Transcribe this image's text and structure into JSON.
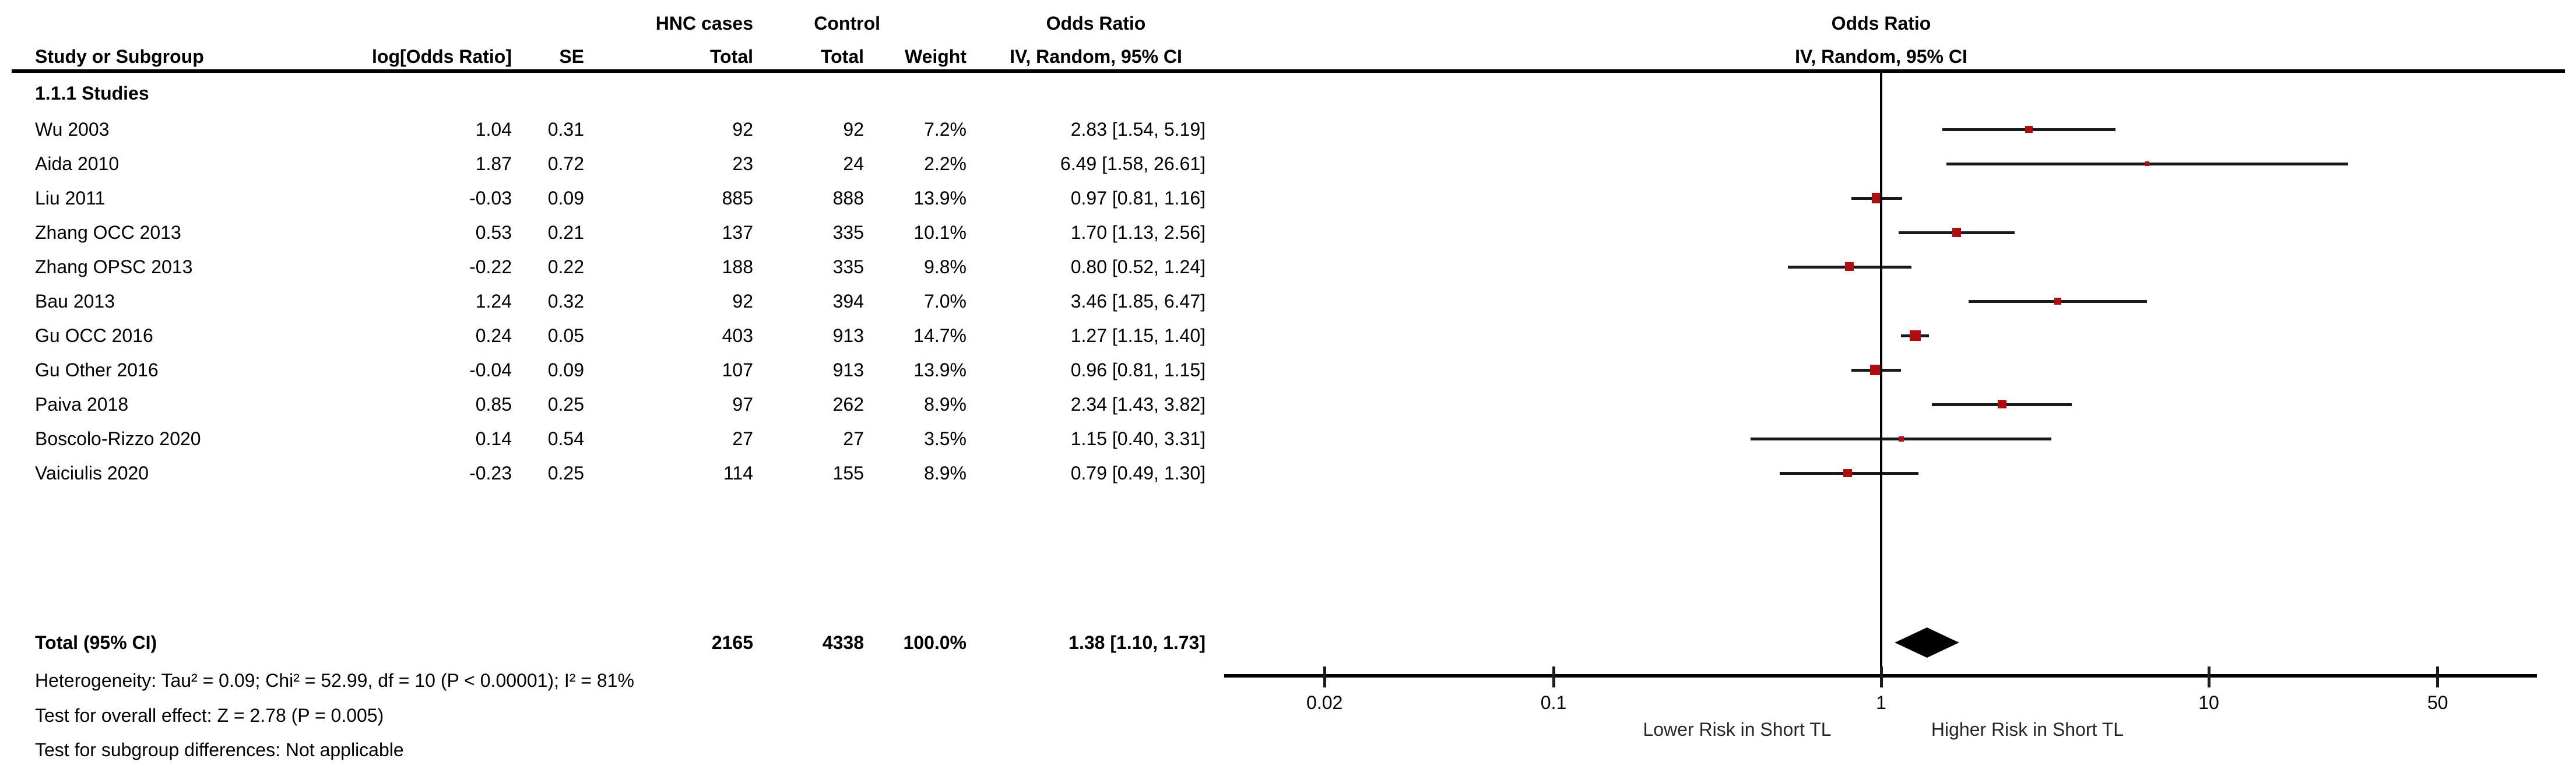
{
  "colors": {
    "background": "#ffffff",
    "text": "#000000",
    "line": "#1a1a1a",
    "marker_red": "#b00e0e",
    "diamond": "#000000",
    "direction_label": "#262626"
  },
  "header": {
    "left": {
      "study_col": "Study or Subgroup",
      "log_or": "log[Odds Ratio]",
      "se": "SE",
      "group1": "HNC cases",
      "group2": "Control",
      "total1": "Total",
      "total2": "Total",
      "weight": "Weight",
      "or_title": "Odds Ratio",
      "or_subtitle": "IV, Random, 95% CI"
    },
    "right": {
      "or_title": "Odds Ratio",
      "or_subtitle": "IV, Random, 95% CI"
    }
  },
  "subgroup_label": "1.1.1 Studies",
  "total_row": {
    "label": "Total (95% CI)",
    "hnc_total": "2165",
    "control_total": "4338",
    "weight": "100.0%",
    "or_ci_text": "1.38 [1.10, 1.73]"
  },
  "footer": {
    "heterogeneity": "Heterogeneity: Tau² = 0.09; Chi² = 52.99, df = 10 (P < 0.00001); I² = 81%",
    "overall_effect": "Test for overall effect: Z = 2.78 (P = 0.005)",
    "subgroup_diff": "Test for subgroup differences: Not applicable"
  },
  "axis": {
    "left_direction_label": "Lower Risk in Short TL",
    "right_direction_label": "Higher Risk in Short TL"
  },
  "chart_data": {
    "type": "scatter",
    "subtype": "forest-plot",
    "title": "Odds Ratio",
    "effect_measure": "IV, Random, 95% CI",
    "x_scale": "log10",
    "x_ticks": [
      0.02,
      0.1,
      1,
      10,
      50
    ],
    "x_tick_labels": [
      "0.02",
      "0.1",
      "1",
      "10",
      "50"
    ],
    "xlim": [
      0.01,
      100
    ],
    "studies": [
      {
        "name": "Wu 2003",
        "log_or": "1.04",
        "se": "0.31",
        "hnc_total": "92",
        "control_total": "92",
        "weight_text": "7.2%",
        "weight_pct": 7.2,
        "or": 2.83,
        "ci_low": 1.54,
        "ci_high": 5.19,
        "or_ci_text": "2.83 [1.54, 5.19]"
      },
      {
        "name": "Aida 2010",
        "log_or": "1.87",
        "se": "0.72",
        "hnc_total": "23",
        "control_total": "24",
        "weight_text": "2.2%",
        "weight_pct": 2.2,
        "or": 6.49,
        "ci_low": 1.58,
        "ci_high": 26.61,
        "or_ci_text": "6.49 [1.58, 26.61]"
      },
      {
        "name": "Liu 2011",
        "log_or": "-0.03",
        "se": "0.09",
        "hnc_total": "885",
        "control_total": "888",
        "weight_text": "13.9%",
        "weight_pct": 13.9,
        "or": 0.97,
        "ci_low": 0.81,
        "ci_high": 1.16,
        "or_ci_text": "0.97 [0.81, 1.16]"
      },
      {
        "name": "Zhang OCC 2013",
        "log_or": "0.53",
        "se": "0.21",
        "hnc_total": "137",
        "control_total": "335",
        "weight_text": "10.1%",
        "weight_pct": 10.1,
        "or": 1.7,
        "ci_low": 1.13,
        "ci_high": 2.56,
        "or_ci_text": "1.70 [1.13, 2.56]"
      },
      {
        "name": "Zhang OPSC 2013",
        "log_or": "-0.22",
        "se": "0.22",
        "hnc_total": "188",
        "control_total": "335",
        "weight_text": "9.8%",
        "weight_pct": 9.8,
        "or": 0.8,
        "ci_low": 0.52,
        "ci_high": 1.24,
        "or_ci_text": "0.80 [0.52, 1.24]"
      },
      {
        "name": "Bau 2013",
        "log_or": "1.24",
        "se": "0.32",
        "hnc_total": "92",
        "control_total": "394",
        "weight_text": "7.0%",
        "weight_pct": 7.0,
        "or": 3.46,
        "ci_low": 1.85,
        "ci_high": 6.47,
        "or_ci_text": "3.46 [1.85, 6.47]"
      },
      {
        "name": "Gu OCC 2016",
        "log_or": "0.24",
        "se": "0.05",
        "hnc_total": "403",
        "control_total": "913",
        "weight_text": "14.7%",
        "weight_pct": 14.7,
        "or": 1.27,
        "ci_low": 1.15,
        "ci_high": 1.4,
        "or_ci_text": "1.27 [1.15, 1.40]"
      },
      {
        "name": "Gu Other 2016",
        "log_or": "-0.04",
        "se": "0.09",
        "hnc_total": "107",
        "control_total": "913",
        "weight_text": "13.9%",
        "weight_pct": 13.9,
        "or": 0.96,
        "ci_low": 0.81,
        "ci_high": 1.15,
        "or_ci_text": "0.96 [0.81, 1.15]"
      },
      {
        "name": "Paiva 2018",
        "log_or": "0.85",
        "se": "0.25",
        "hnc_total": "97",
        "control_total": "262",
        "weight_text": "8.9%",
        "weight_pct": 8.9,
        "or": 2.34,
        "ci_low": 1.43,
        "ci_high": 3.82,
        "or_ci_text": "2.34 [1.43, 3.82]"
      },
      {
        "name": "Boscolo-Rizzo 2020",
        "log_or": "0.14",
        "se": "0.54",
        "hnc_total": "27",
        "control_total": "27",
        "weight_text": "3.5%",
        "weight_pct": 3.5,
        "or": 1.15,
        "ci_low": 0.4,
        "ci_high": 3.31,
        "or_ci_text": "1.15 [0.40, 3.31]"
      },
      {
        "name": "Vaiciulis 2020",
        "log_or": "-0.23",
        "se": "0.25",
        "hnc_total": "114",
        "control_total": "155",
        "weight_text": "8.9%",
        "weight_pct": 8.9,
        "or": 0.79,
        "ci_low": 0.49,
        "ci_high": 1.3,
        "or_ci_text": "0.79 [0.49, 1.30]"
      }
    ],
    "total": {
      "name": "Total (95% CI)",
      "hnc_total": 2165,
      "control_total": 4338,
      "weight_pct": 100.0,
      "or": 1.38,
      "ci_low": 1.1,
      "ci_high": 1.73
    },
    "heterogeneity": "Tau² = 0.09; Chi² = 52.99, df = 10 (P < 0.00001); I² = 81%",
    "overall_effect": "Z = 2.78 (P = 0.005)",
    "subgroup_differences": "Not applicable",
    "legend_position": "none",
    "grid": false
  }
}
